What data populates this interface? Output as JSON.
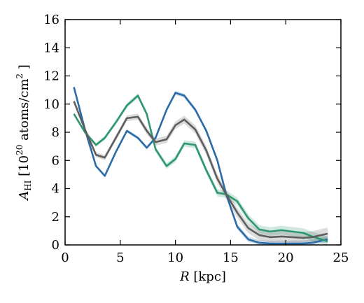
{
  "chart_data": {
    "type": "line",
    "xlabel_italic": "R",
    "xlabel_rest": " [kpc]",
    "ylabel_italic": "A",
    "ylabel_sub": "HI",
    "ylabel_open": " [10",
    "ylabel_exp": "20",
    "ylabel_units": " atoms/cm",
    "ylabel_units_exp": "2",
    "ylabel_close": " ]",
    "xlim": [
      0,
      25
    ],
    "ylim": [
      0,
      16
    ],
    "xticks": [
      0,
      5,
      10,
      15,
      20,
      25
    ],
    "yticks": [
      0,
      2,
      4,
      6,
      8,
      10,
      12,
      14,
      16
    ],
    "grid": false,
    "legend": "none",
    "series": [
      {
        "color": "#2a6ba8",
        "x": [
          0.8,
          1.8,
          2.8,
          3.6,
          4.6,
          5.6,
          6.6,
          7.4,
          8.2,
          9.2,
          10.0,
          10.8,
          11.8,
          12.8,
          13.8,
          14.6,
          15.6,
          16.6,
          17.6,
          18.6,
          19.6,
          20.6,
          21.6,
          22.4,
          23.8
        ],
        "y": [
          11.2,
          8.2,
          5.6,
          4.9,
          6.6,
          8.1,
          7.6,
          6.9,
          7.6,
          9.6,
          10.8,
          10.6,
          9.6,
          8.1,
          6.0,
          3.6,
          1.3,
          0.4,
          0.15,
          0.1,
          0.1,
          0.1,
          0.1,
          0.15,
          0.4
        ],
        "band": 0.08
      },
      {
        "color": "#2e9770",
        "x": [
          0.8,
          1.8,
          2.8,
          3.6,
          4.6,
          5.6,
          6.6,
          7.4,
          8.2,
          9.2,
          10.0,
          10.8,
          11.8,
          12.8,
          13.8,
          14.6,
          15.6,
          16.6,
          17.6,
          18.6,
          19.6,
          20.6,
          21.6,
          22.4,
          23.8
        ],
        "y": [
          9.3,
          8.0,
          7.1,
          7.6,
          8.7,
          9.9,
          10.6,
          9.3,
          6.8,
          5.6,
          6.1,
          7.2,
          7.1,
          5.3,
          3.7,
          3.6,
          3.1,
          1.9,
          1.1,
          0.95,
          1.05,
          0.95,
          0.85,
          0.6,
          0.25
        ],
        "band": 0.12
      },
      {
        "color": "#5e5e5e",
        "x": [
          0.8,
          1.8,
          2.8,
          3.6,
          4.6,
          5.6,
          6.6,
          7.4,
          8.2,
          9.2,
          10.0,
          10.8,
          11.8,
          12.8,
          13.8,
          14.6,
          15.6,
          16.6,
          17.6,
          18.6,
          19.6,
          20.6,
          21.6,
          22.4,
          23.8
        ],
        "y": [
          10.2,
          8.2,
          6.4,
          6.2,
          7.6,
          9.0,
          9.1,
          8.1,
          7.3,
          7.5,
          8.5,
          8.9,
          8.2,
          6.7,
          4.7,
          3.6,
          2.3,
          1.2,
          0.7,
          0.55,
          0.6,
          0.55,
          0.5,
          0.55,
          0.8
        ],
        "band": 0.15
      }
    ]
  }
}
